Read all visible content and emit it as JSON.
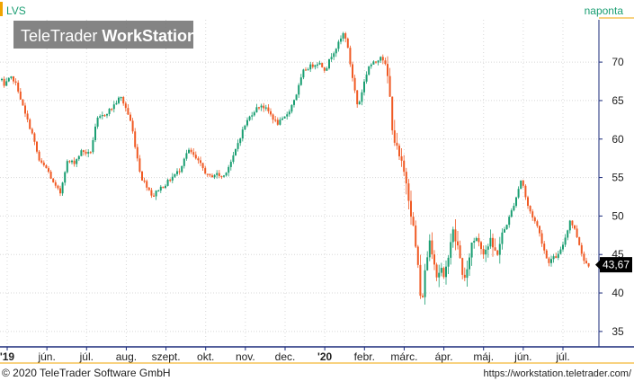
{
  "header": {
    "symbol": "LVS",
    "period": "naponta",
    "watermark_brand": "TeleTrader",
    "watermark_product": "WorkStation"
  },
  "footer": {
    "copyright": "© 2020 TeleTrader Software GmbH",
    "url": "https://workstation.teletrader.com/"
  },
  "colors": {
    "up": "#1a9e72",
    "down": "#f05a24",
    "accent": "#f0a400",
    "axis": "#1a2a7a",
    "grid": "#d8d8d8",
    "watermark_bg": "#777777"
  },
  "chart_data": {
    "type": "candlestick",
    "x_axis_labels": [
      "'19",
      "jún.",
      "júl.",
      "aug.",
      "szept.",
      "okt.",
      "nov.",
      "dec.",
      "'20",
      "febr.",
      "márc.",
      "ápr.",
      "máj.",
      "jún.",
      "júl."
    ],
    "y_ticks": [
      35,
      40,
      45,
      50,
      55,
      60,
      65,
      70
    ],
    "ylim": [
      33,
      75.5
    ],
    "last_price": 43.67,
    "last_price_label": "43,67",
    "grid": true,
    "anchors": [
      [
        0,
        69
      ],
      [
        4,
        66.5
      ],
      [
        8,
        67.5
      ],
      [
        14,
        68
      ],
      [
        20,
        66.5
      ],
      [
        27,
        63.5
      ],
      [
        35,
        61
      ],
      [
        44,
        57
      ],
      [
        53,
        56
      ],
      [
        60,
        54
      ],
      [
        67,
        53
      ],
      [
        74,
        57
      ],
      [
        83,
        57
      ],
      [
        91,
        58.5
      ],
      [
        100,
        58
      ],
      [
        108,
        62.5
      ],
      [
        114,
        63
      ],
      [
        124,
        64
      ],
      [
        134,
        65.5
      ],
      [
        140,
        64
      ],
      [
        146,
        62
      ],
      [
        152,
        58
      ],
      [
        157,
        55
      ],
      [
        163,
        54
      ],
      [
        170,
        52.5
      ],
      [
        176,
        53.5
      ],
      [
        183,
        54
      ],
      [
        191,
        55
      ],
      [
        200,
        56
      ],
      [
        206,
        58
      ],
      [
        211,
        58.5
      ],
      [
        217,
        57.5
      ],
      [
        224,
        56.5
      ],
      [
        232,
        55
      ],
      [
        240,
        55.5
      ],
      [
        248,
        55
      ],
      [
        252,
        56
      ],
      [
        259,
        57.5
      ],
      [
        266,
        60
      ],
      [
        273,
        62
      ],
      [
        281,
        63.5
      ],
      [
        290,
        64.5
      ],
      [
        299,
        63.5
      ],
      [
        308,
        62
      ],
      [
        315,
        62.5
      ],
      [
        323,
        64
      ],
      [
        330,
        66
      ],
      [
        338,
        69
      ],
      [
        346,
        69.5
      ],
      [
        354,
        70
      ],
      [
        362,
        69
      ],
      [
        369,
        71
      ],
      [
        377,
        72.5
      ],
      [
        383,
        74
      ],
      [
        387,
        71.5
      ],
      [
        392,
        68
      ],
      [
        398,
        64
      ],
      [
        404,
        67
      ],
      [
        410,
        69.5
      ],
      [
        418,
        70
      ],
      [
        424,
        71
      ],
      [
        430,
        69
      ],
      [
        433,
        66
      ],
      [
        436,
        62
      ],
      [
        440,
        59
      ],
      [
        444,
        57.5
      ],
      [
        448,
        56
      ],
      [
        452,
        54.5
      ],
      [
        456,
        51.5
      ],
      [
        459,
        49
      ],
      [
        462,
        46
      ],
      [
        465,
        43.5
      ],
      [
        468,
        38
      ],
      [
        471,
        41
      ],
      [
        474,
        44
      ],
      [
        478,
        47
      ],
      [
        482,
        45
      ],
      [
        486,
        42
      ],
      [
        490,
        43.5
      ],
      [
        494,
        41
      ],
      [
        498,
        45
      ],
      [
        503,
        48
      ],
      [
        508,
        46.5
      ],
      [
        513,
        43.5
      ],
      [
        518,
        41
      ],
      [
        523,
        46
      ],
      [
        530,
        47.5
      ],
      [
        538,
        45.5
      ],
      [
        545,
        46.5
      ],
      [
        552,
        45
      ],
      [
        560,
        48
      ],
      [
        567,
        50
      ],
      [
        574,
        52.5
      ],
      [
        580,
        55
      ],
      [
        586,
        51.5
      ],
      [
        592,
        50
      ],
      [
        598,
        48.5
      ],
      [
        603,
        46.5
      ],
      [
        609,
        44
      ],
      [
        615,
        44.5
      ],
      [
        622,
        45
      ],
      [
        628,
        47
      ],
      [
        634,
        49.5
      ],
      [
        640,
        48
      ],
      [
        645,
        46
      ],
      [
        650,
        44
      ],
      [
        655,
        43.67
      ]
    ]
  }
}
